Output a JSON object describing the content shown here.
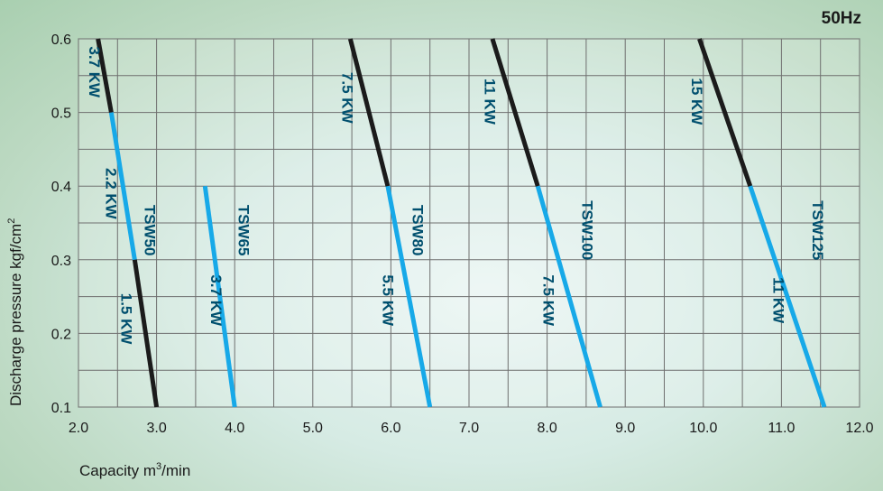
{
  "frequency": "50Hz",
  "chart_data": {
    "type": "line",
    "xlabel": "Capacity",
    "xunit_base": "m",
    "xunit_sup": "3",
    "xunit_tail": "/min",
    "ylabel": "Discharge pressure",
    "yunit_base": "kgf/cm",
    "yunit_sup": "2",
    "xlim": [
      2.0,
      12.0
    ],
    "ylim": [
      0.1,
      0.6
    ],
    "x_ticks": [
      "2.0",
      "3.0",
      "4.0",
      "5.0",
      "6.0",
      "7.0",
      "8.0",
      "9.0",
      "10.0",
      "11.0",
      "12.0"
    ],
    "y_ticks": [
      "0.1",
      "0.2",
      "0.3",
      "0.4",
      "0.5",
      "0.6"
    ],
    "grid": true,
    "colors": {
      "black_segment": "#1b1b1b",
      "blue_segment": "#17a9e8",
      "label": "#004f6e",
      "grid": "#6f6f6f"
    },
    "models": [
      {
        "name": "TSW50",
        "name_pos": [
          2.85,
          0.34
        ],
        "segments": [
          {
            "color": "black",
            "power": "3.7 KW",
            "from": [
              2.25,
              0.6
            ],
            "to": [
              2.42,
              0.5
            ],
            "label_pos": [
              2.14,
              0.555
            ]
          },
          {
            "color": "blue",
            "power": "2.2 KW",
            "from": [
              2.42,
              0.5
            ],
            "to": [
              2.72,
              0.3
            ],
            "label_pos": [
              2.35,
              0.39
            ]
          },
          {
            "color": "black",
            "power": "1.5 KW",
            "from": [
              2.72,
              0.3
            ],
            "to": [
              3.0,
              0.1
            ],
            "label_pos": [
              2.55,
              0.22
            ]
          }
        ]
      },
      {
        "name": "TSW65",
        "name_pos": [
          4.05,
          0.34
        ],
        "segments": [
          {
            "color": "blue",
            "power": "3.7 KW",
            "from": [
              3.62,
              0.4
            ],
            "to": [
              4.0,
              0.1
            ],
            "label_pos": [
              3.7,
              0.245
            ]
          }
        ]
      },
      {
        "name": "TSW80",
        "name_pos": [
          6.28,
          0.34
        ],
        "segments": [
          {
            "color": "black",
            "power": "7.5 KW",
            "from": [
              5.48,
              0.6
            ],
            "to": [
              5.96,
              0.4
            ],
            "label_pos": [
              5.38,
              0.52
            ]
          },
          {
            "color": "blue",
            "power": "5.5 KW",
            "from": [
              5.96,
              0.4
            ],
            "to": [
              6.5,
              0.1
            ],
            "label_pos": [
              5.9,
              0.245
            ]
          }
        ]
      },
      {
        "name": "TSW100",
        "name_pos": [
          8.45,
          0.34
        ],
        "segments": [
          {
            "color": "black",
            "power": "11 KW",
            "from": [
              7.3,
              0.6
            ],
            "to": [
              7.88,
              0.4
            ],
            "label_pos": [
              7.2,
              0.515
            ]
          },
          {
            "color": "blue",
            "power": "7.5 KW",
            "from": [
              7.88,
              0.4
            ],
            "to": [
              8.68,
              0.1
            ],
            "label_pos": [
              7.95,
              0.245
            ]
          }
        ]
      },
      {
        "name": "TSW125",
        "name_pos": [
          11.4,
          0.34
        ],
        "segments": [
          {
            "color": "black",
            "power": "15 KW",
            "from": [
              9.95,
              0.6
            ],
            "to": [
              10.6,
              0.4
            ],
            "label_pos": [
              9.85,
              0.515
            ]
          },
          {
            "color": "blue",
            "power": "11 KW",
            "from": [
              10.6,
              0.4
            ],
            "to": [
              11.55,
              0.1
            ],
            "label_pos": [
              10.9,
              0.245
            ]
          }
        ]
      }
    ]
  }
}
